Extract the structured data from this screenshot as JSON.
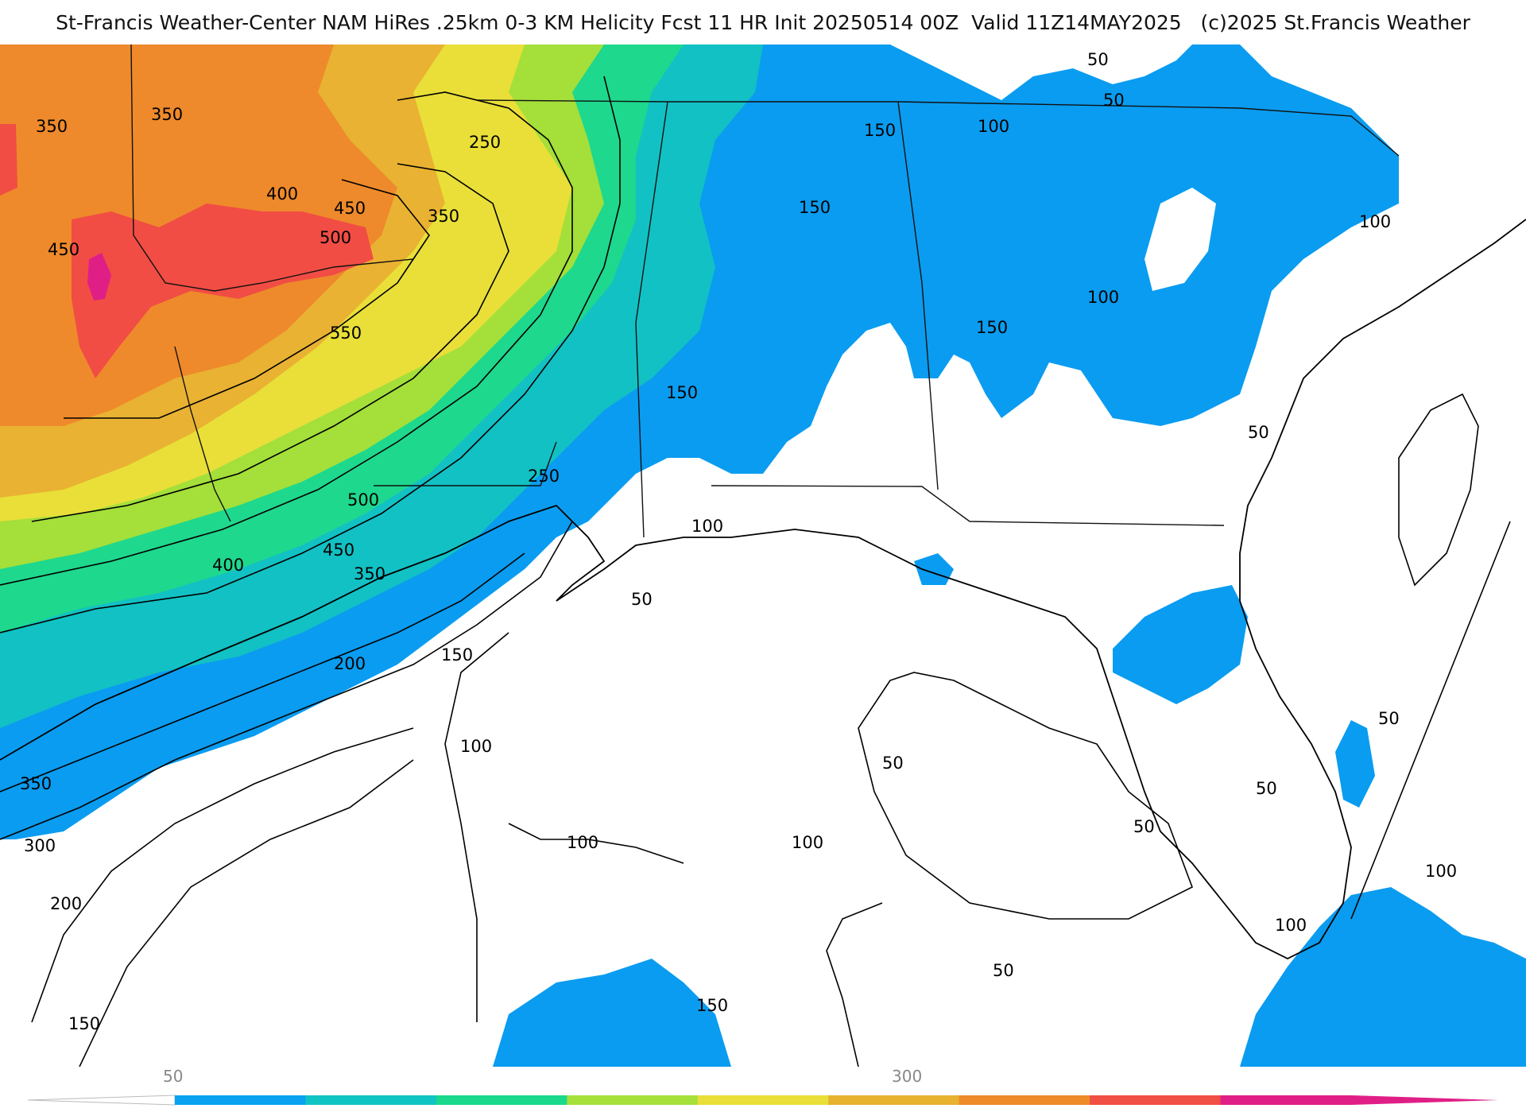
{
  "header": {
    "title": "St-Francis Weather-Center NAM HiRes .25km 0-3 KM Helicity Fcst 11 HR Init 20250514 00Z  Valid 11Z14MAY2025   (c)2025 St.Francis Weather"
  },
  "map": {
    "field": "0-3 KM Helicity",
    "contour_labels": [
      "350",
      "350",
      "450",
      "400",
      "450",
      "500",
      "250",
      "350",
      "550",
      "500",
      "250",
      "150",
      "150",
      "150",
      "100",
      "150",
      "100",
      "100",
      "50",
      "50",
      "100",
      "150",
      "200",
      "450",
      "400",
      "350",
      "300",
      "350",
      "200",
      "150",
      "100",
      "50",
      "100",
      "100",
      "50",
      "50",
      "50",
      "50",
      "50",
      "100",
      "100",
      "50",
      "150"
    ]
  },
  "colorbar": {
    "tick_labels": [
      "50",
      "300"
    ],
    "colors": [
      "#0aa2f0",
      "#11c4c4",
      "#1ad98c",
      "#a6e03a",
      "#eadf38",
      "#e7b230",
      "#ee8b2a",
      "#f04f44",
      "#e01f86"
    ]
  }
}
